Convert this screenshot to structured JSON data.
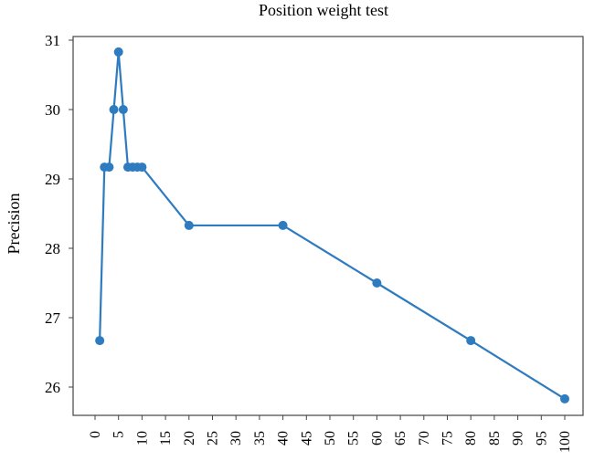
{
  "chart_data": {
    "type": "line",
    "title": "Position weight test",
    "xlabel": "",
    "ylabel": "Precision",
    "x_ticks": [
      "0",
      "5",
      "10",
      "15",
      "20",
      "25",
      "30",
      "35",
      "40",
      "45",
      "50",
      "55",
      "60",
      "65",
      "70",
      "75",
      "80",
      "85",
      "90",
      "95",
      "100"
    ],
    "y_ticks": [
      "26",
      "27",
      "28",
      "29",
      "30",
      "31"
    ],
    "xlim": [
      0,
      100
    ],
    "ylim": [
      26,
      31
    ],
    "grid": false,
    "series": [
      {
        "color": "#2e7bbf",
        "points": [
          {
            "x": 1,
            "y": 26.67
          },
          {
            "x": 2,
            "y": 29.17
          },
          {
            "x": 3,
            "y": 29.17
          },
          {
            "x": 4,
            "y": 30.0
          },
          {
            "x": 5,
            "y": 30.83
          },
          {
            "x": 6,
            "y": 30.0
          },
          {
            "x": 7,
            "y": 29.17
          },
          {
            "x": 8,
            "y": 29.17
          },
          {
            "x": 9,
            "y": 29.17
          },
          {
            "x": 10,
            "y": 29.17
          },
          {
            "x": 20,
            "y": 28.33
          },
          {
            "x": 40,
            "y": 28.33
          },
          {
            "x": 60,
            "y": 27.5
          },
          {
            "x": 80,
            "y": 26.67
          },
          {
            "x": 100,
            "y": 25.83
          }
        ]
      }
    ]
  }
}
